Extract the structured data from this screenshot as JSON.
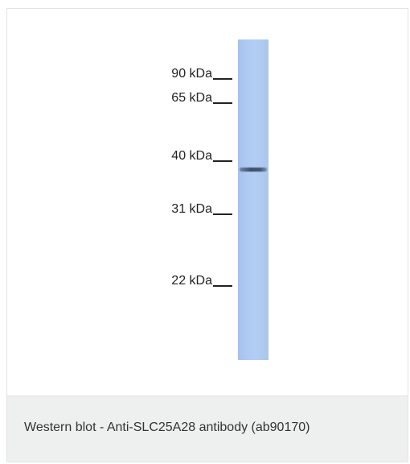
{
  "blot": {
    "markers": [
      {
        "label": "90 kDa"
      },
      {
        "label": "65 kDa"
      },
      {
        "label": "40 kDa"
      },
      {
        "label": "31 kDa"
      },
      {
        "label": "22 kDa"
      }
    ]
  },
  "caption": "Western blot - Anti-SLC25A28 antibody (ab90170)",
  "colors": {
    "lane": "#aecaf2",
    "caption_background": "#eef0ef"
  }
}
